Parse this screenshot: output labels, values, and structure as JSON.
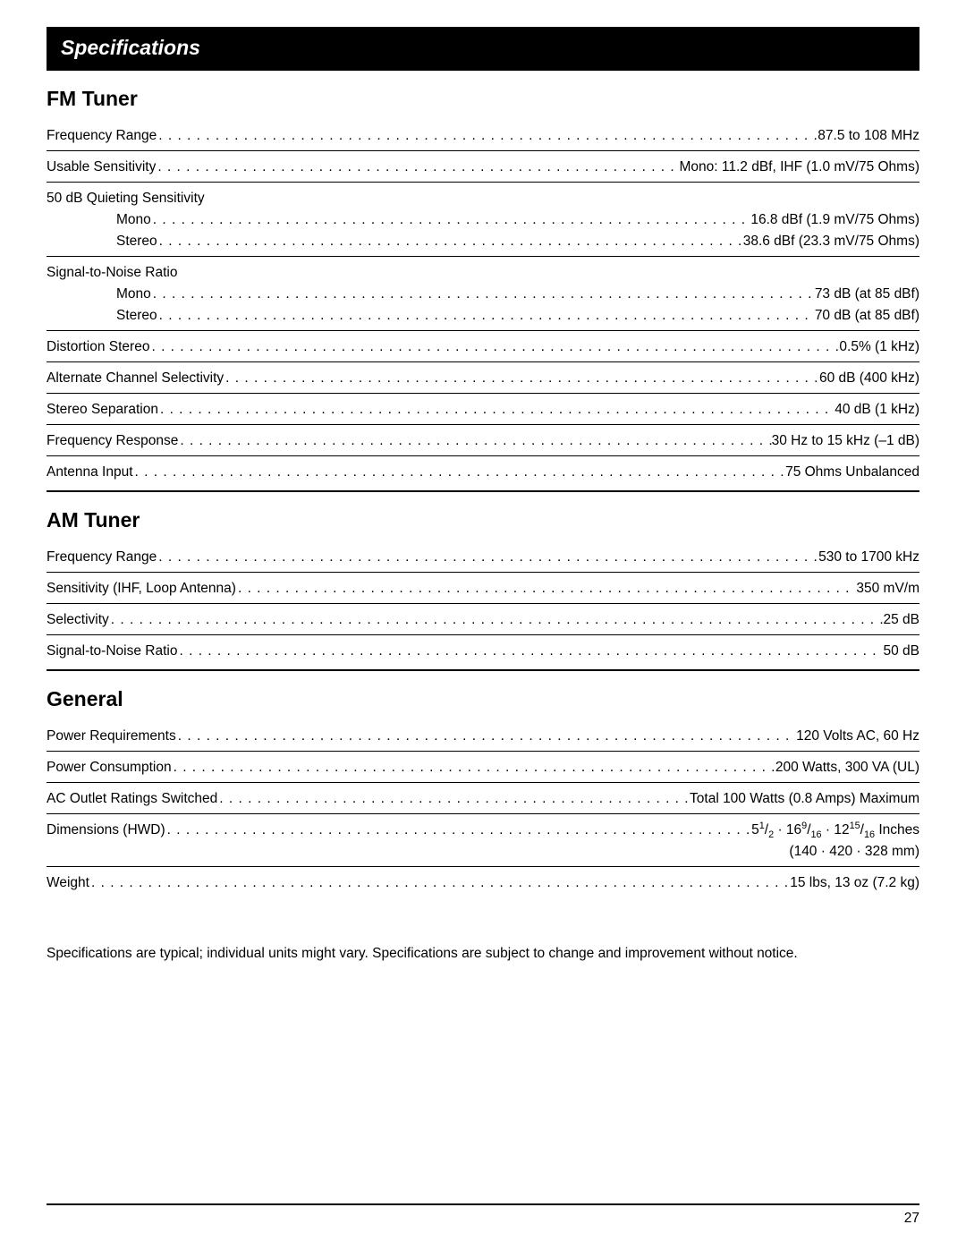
{
  "page": {
    "title": "Specifications",
    "page_number": "27",
    "footnote": "Specifications are typical; individual units might vary. Specifications are subject to change and improvement without notice."
  },
  "fm_tuner": {
    "heading": "FM Tuner",
    "rows": [
      {
        "label": "Frequency Range",
        "value": "87.5 to 108 MHz"
      },
      {
        "label": "Usable Sensitivity",
        "value": "Mono: 11.2 dBf, IHF (1.0 mV/75 Ohms)"
      }
    ],
    "quieting": {
      "header": "50 dB Quieting Sensitivity",
      "mono": {
        "label": "Mono",
        "value": "16.8 dBf (1.9 mV/75 Ohms)"
      },
      "stereo": {
        "label": "Stereo",
        "value": "38.6 dBf (23.3 mV/75 Ohms)"
      }
    },
    "snr": {
      "header": "Signal-to-Noise Ratio",
      "mono": {
        "label": "Mono",
        "value": "73 dB (at 85 dBf)"
      },
      "stereo": {
        "label": "Stereo",
        "value": "70 dB (at 85 dBf)"
      }
    },
    "rows2": [
      {
        "label": "Distortion Stereo",
        "value": "0.5% (1 kHz)"
      },
      {
        "label": "Alternate Channel Selectivity",
        "value": "60 dB (400 kHz)"
      },
      {
        "label": "Stereo Separation",
        "value": "40 dB (1 kHz)"
      },
      {
        "label": "Frequency Response",
        "value": "30 Hz to 15 kHz (–1 dB)"
      },
      {
        "label": "Antenna Input",
        "value": "75 Ohms Unbalanced"
      }
    ]
  },
  "am_tuner": {
    "heading": "AM Tuner",
    "rows": [
      {
        "label": "Frequency Range",
        "value": "530 to 1700 kHz"
      },
      {
        "label": "Sensitivity (IHF, Loop Antenna)",
        "value": "350 mV/m"
      },
      {
        "label": "Selectivity",
        "value": "25 dB"
      },
      {
        "label": "Signal-to-Noise Ratio",
        "value": "50 dB"
      }
    ]
  },
  "general": {
    "heading": "General",
    "rows": [
      {
        "label": "Power Requirements",
        "value": "120 Volts AC, 60 Hz"
      },
      {
        "label": "Power Consumption",
        "value": "200 Watts, 300 VA (UL)"
      },
      {
        "label": "AC Outlet Ratings Switched",
        "value": "Total 100 Watts (0.8 Amps) Maximum"
      }
    ],
    "dimensions": {
      "label": "Dimensions (HWD)",
      "line2": "(140 · 420 · 328 mm)"
    },
    "weight": {
      "label": "Weight",
      "value": "15 lbs, 13 oz (7.2 kg)"
    }
  }
}
